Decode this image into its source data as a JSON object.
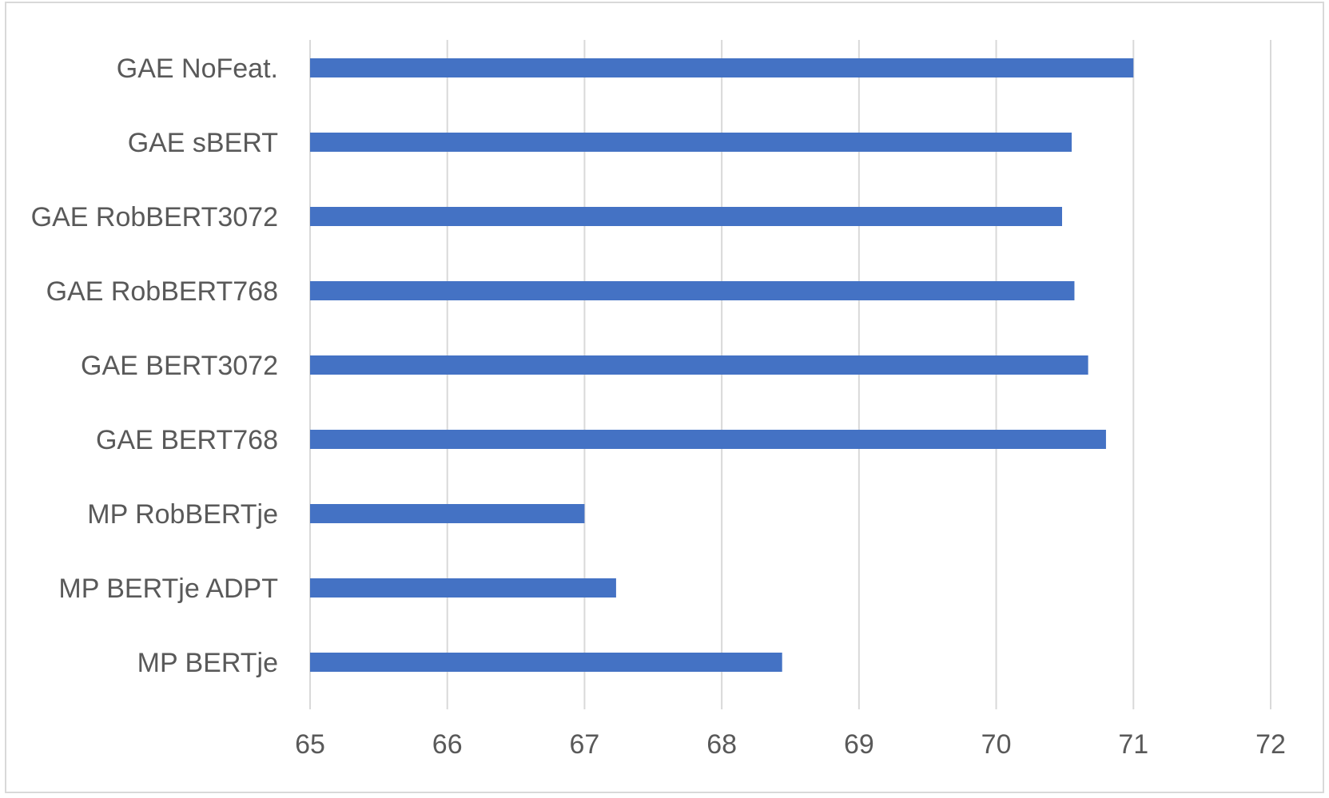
{
  "chart_data": {
    "type": "bar",
    "orientation": "horizontal",
    "title": "",
    "xlabel": "",
    "ylabel": "",
    "categories": [
      "GAE NoFeat.",
      "GAE sBERT",
      "GAE RobBERT3072",
      "GAE RobBERT768",
      "GAE BERT3072",
      "GAE BERT768",
      "MP RobBERTje",
      "MP BERTje ADPT",
      "MP BERTje"
    ],
    "values": [
      71.0,
      70.55,
      70.48,
      70.57,
      70.67,
      70.8,
      67.0,
      67.23,
      68.44
    ],
    "xlim": [
      65,
      72
    ],
    "xticks": [
      65,
      66,
      67,
      68,
      69,
      70,
      71,
      72
    ],
    "grid": "vertical",
    "legend": "none",
    "colors": {
      "bar": "#4472c4",
      "grid": "#d9d9d9",
      "text": "#595959"
    }
  }
}
